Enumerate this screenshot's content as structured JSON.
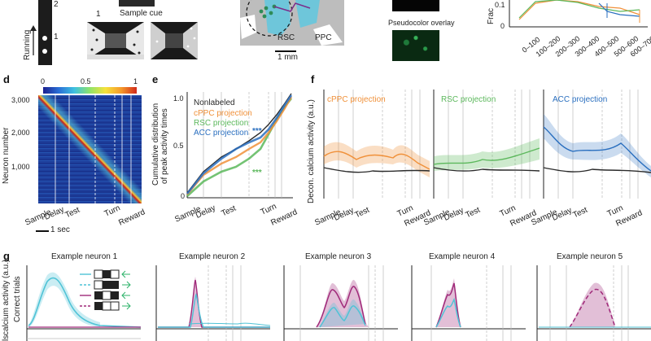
{
  "top": {
    "running_label": "Running",
    "track_numbers": [
      "2",
      "1"
    ],
    "maze_number": "1",
    "sample_cue": "Sample cue",
    "rsc": "RSC",
    "ppc": "PPC",
    "scale": "1 mm",
    "overlay": "Pseudocolor overlay",
    "frac_label": "Frac",
    "frac_ticks": [
      "0.1",
      "0"
    ],
    "frac_categories": [
      "0–100",
      "100–200",
      "200–300",
      "300–400",
      "400–500",
      "500–600",
      "600–700"
    ]
  },
  "panel_d": {
    "letter": "d",
    "colorbar": [
      "0",
      "0.5",
      "1"
    ],
    "ylabel": "Neuron number",
    "yticks": [
      "3,000",
      "2,000",
      "1,000"
    ],
    "xticks": [
      "Sample",
      "Delay",
      "Test",
      "Turn",
      "Reward"
    ],
    "scalebar": "1 sec"
  },
  "panel_e": {
    "letter": "e",
    "ylabel_1": "Cumulative distribution",
    "ylabel_2": "of peak activity times",
    "yticks": [
      "1.0",
      "0.5",
      "0"
    ],
    "legend": [
      "Nonlabeled",
      "cPPC projection",
      "RSC projection",
      "ACC projection"
    ],
    "stars_blue": "***",
    "stars_green": "***",
    "xticks": [
      "Sample",
      "Delay",
      "Test",
      "Turn",
      "Reward"
    ],
    "colors": {
      "black": "#2b2b2b",
      "orange": "#f0913a",
      "green": "#5cb85c",
      "blue": "#2a6fbf"
    }
  },
  "panel_f": {
    "letter": "f",
    "ylabel": "Decon. calcium activity (a.u.)",
    "titles": [
      "cPPC projection",
      "RSC projection",
      "ACC projection"
    ],
    "xticks": [
      "Sample",
      "Delay",
      "Test",
      "Turn",
      "Reward"
    ]
  },
  "panel_g": {
    "letter": "g",
    "titles": [
      "Example neuron 1",
      "Example neuron 2",
      "Example neuron 3",
      "Example neuron 4",
      "Example neuron 5"
    ],
    "ylabel_calcium": "calcium activity (a.u.)",
    "ylabel_correct": "Correct trials",
    "ylabel_error": "ls"
  }
}
